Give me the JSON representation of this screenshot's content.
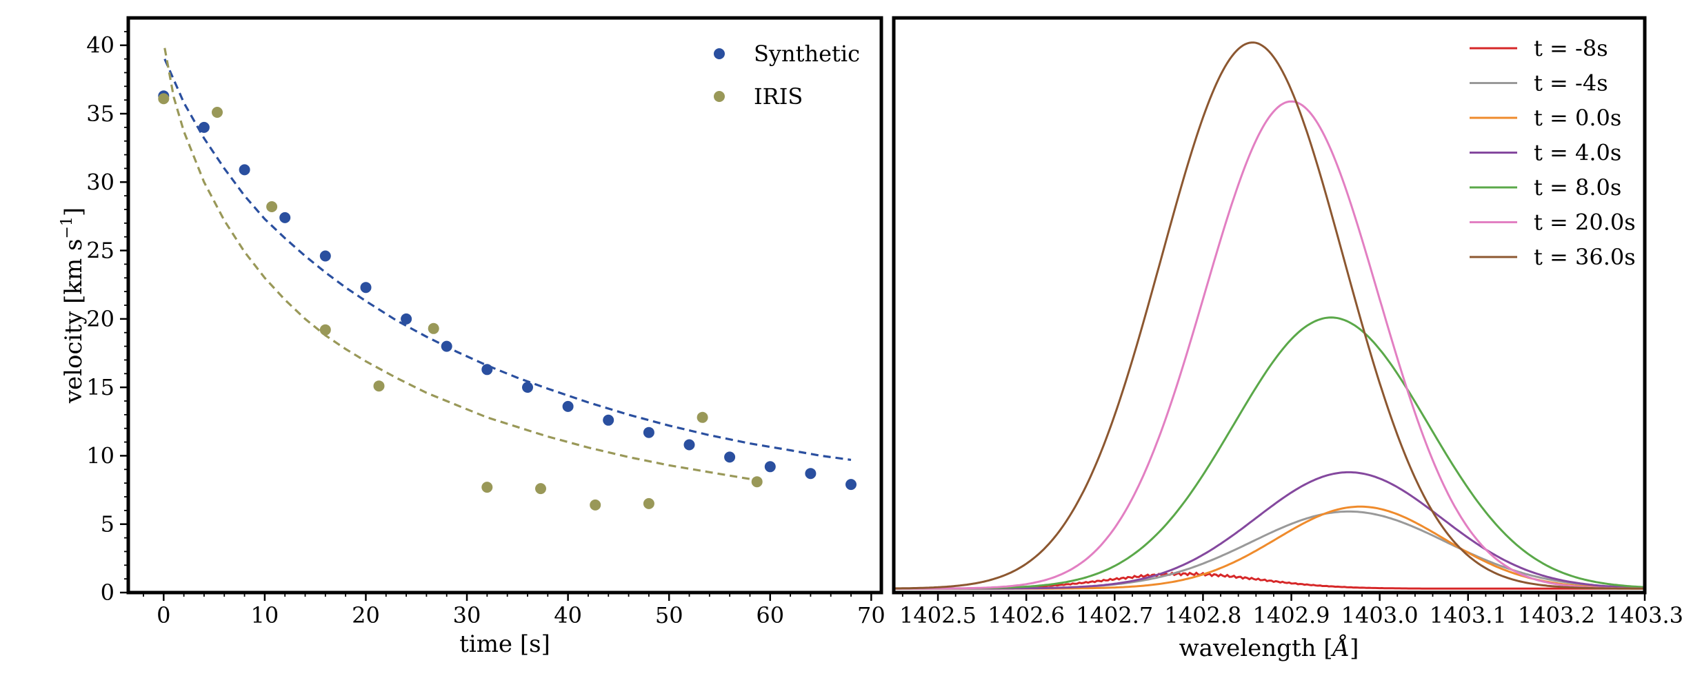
{
  "chart_data": [
    {
      "type": "scatter",
      "xlabel": "time [s]",
      "ylabel": "velocity [km s",
      "ylabel_sup": "−1",
      "ylabel_end": "]",
      "xlim": [
        -3.5,
        71
      ],
      "ylim": [
        0,
        42
      ],
      "xticks": [
        0,
        10,
        20,
        30,
        40,
        50,
        60,
        70
      ],
      "yticks": [
        0,
        5,
        10,
        15,
        20,
        25,
        30,
        35,
        40
      ],
      "legend": "top-right",
      "series": [
        {
          "name": "Synthetic",
          "color": "#2a4f9f",
          "x": [
            0,
            4,
            8,
            12,
            16,
            20,
            24,
            28,
            32,
            36,
            40,
            44,
            48,
            52,
            56,
            60,
            64,
            68
          ],
          "y": [
            36.3,
            34.0,
            30.9,
            27.4,
            24.6,
            22.3,
            20.0,
            18.0,
            16.3,
            15.0,
            13.6,
            12.6,
            11.7,
            10.8,
            9.9,
            9.2,
            8.7,
            7.9
          ],
          "fit_x": [
            0.1,
            2,
            4,
            6,
            8,
            10,
            12,
            14,
            16,
            18,
            20,
            23,
            26,
            29,
            32,
            35,
            38,
            42,
            46,
            50,
            54,
            58,
            62,
            65,
            68
          ],
          "fit_y": [
            39.0,
            35.8,
            33.2,
            31.0,
            29.0,
            27.3,
            25.9,
            24.6,
            23.4,
            22.3,
            21.3,
            19.9,
            18.7,
            17.6,
            16.6,
            15.7,
            14.9,
            13.9,
            13.0,
            12.2,
            11.5,
            10.9,
            10.4,
            10.0,
            9.7
          ],
          "fit_dash": true
        },
        {
          "name": "IRIS",
          "color": "#999858",
          "x": [
            0,
            5.3,
            10.7,
            16.0,
            21.3,
            26.7,
            32.0,
            37.3,
            42.7,
            48.0,
            53.3,
            58.7
          ],
          "y": [
            36.1,
            35.1,
            28.2,
            19.2,
            15.1,
            19.3,
            7.7,
            7.6,
            6.4,
            6.5,
            12.8,
            8.1
          ],
          "fit_x": [
            0.1,
            1,
            2,
            4,
            6,
            8,
            10,
            12,
            14,
            16,
            18,
            20,
            23,
            26,
            29,
            32,
            35,
            38,
            42,
            46,
            50,
            54,
            58,
            59
          ],
          "fit_y": [
            39.8,
            36.2,
            33.7,
            30.0,
            27.2,
            24.9,
            23.0,
            21.4,
            20.0,
            18.8,
            17.8,
            16.9,
            15.7,
            14.6,
            13.7,
            12.8,
            12.1,
            11.4,
            10.6,
            9.9,
            9.3,
            8.8,
            8.3,
            8.2
          ],
          "fit_dash": true
        }
      ]
    },
    {
      "type": "line",
      "xlabel": "wavelength [",
      "xlabel_unit": "Å",
      "xlabel_end": "]",
      "xlim": [
        1402.45,
        1403.3
      ],
      "xticks": [
        1402.5,
        1402.6,
        1402.7,
        1402.8,
        1402.9,
        1403.0,
        1403.1,
        1403.2,
        1403.3
      ],
      "xtick_labels": [
        "1402.5",
        "1402.6",
        "1402.7",
        "1402.8",
        "1402.9",
        "1403.0",
        "1403.1",
        "1403.2",
        "1403.3"
      ],
      "legend": "top-right",
      "series": [
        {
          "name": "t = -8s",
          "color": "#d62728",
          "baseline": 0.8,
          "peak": 3.8,
          "center": 1402.78,
          "width": 0.085,
          "wobble": true
        },
        {
          "name": "t = -4s",
          "color": "#999999",
          "baseline": 0.8,
          "peak": 16.5,
          "center": 1402.965,
          "width": 0.11
        },
        {
          "name": "t = 0.0s",
          "color": "#ef8b2c",
          "baseline": 0.8,
          "peak": 17.5,
          "center": 1402.978,
          "width": 0.095
        },
        {
          "name": "t = 4.0s",
          "color": "#84489e",
          "baseline": 0.8,
          "peak": 24.5,
          "center": 1402.965,
          "width": 0.105
        },
        {
          "name": "t = 8.0s",
          "color": "#5aa849",
          "baseline": 0.8,
          "peak": 56.0,
          "center": 1402.945,
          "width": 0.11
        },
        {
          "name": "t = 20.0s",
          "color": "#e27fc2",
          "baseline": 0.8,
          "peak": 100.0,
          "center": 1402.9,
          "width": 0.098
        },
        {
          "name": "t = 36.0s",
          "color": "#8c5730",
          "baseline": 0.8,
          "peak": 112.0,
          "center": 1402.856,
          "width": 0.103
        }
      ],
      "ylim": [
        0,
        117
      ]
    }
  ]
}
